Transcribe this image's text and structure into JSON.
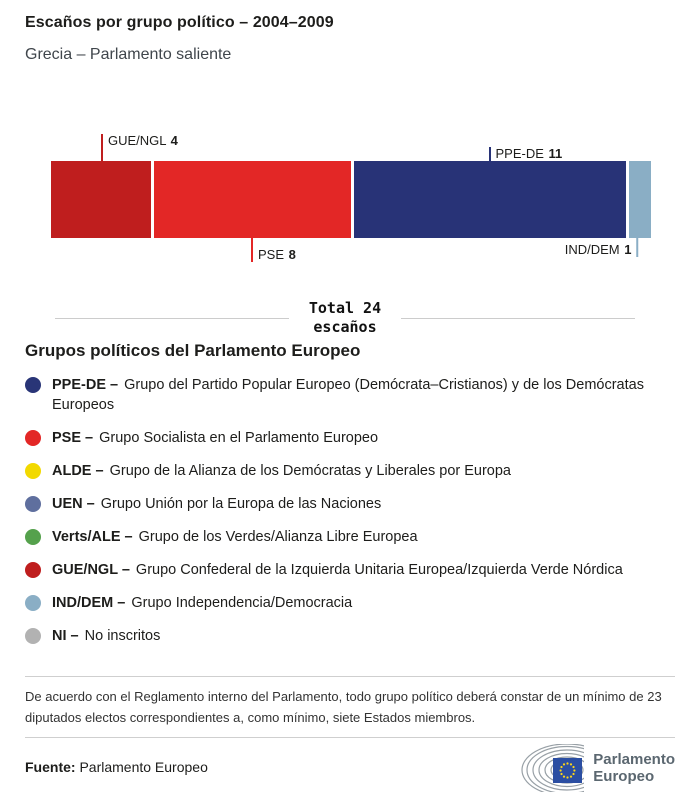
{
  "header": {
    "title": "Escaños por grupo político – 2004–2009",
    "subtitle": "Grecia – Parlamento saliente"
  },
  "chart_data": {
    "type": "bar",
    "variant": "horizontal-stacked-single-bar",
    "title": "Escaños por grupo político – 2004–2009",
    "subtitle": "Grecia – Parlamento saliente",
    "total": 24,
    "series": [
      {
        "name": "GUE/NGL",
        "value": 4,
        "color": "#bf1e1e",
        "label_position": "above"
      },
      {
        "name": "PSE",
        "value": 8,
        "color": "#e32726",
        "label_position": "below"
      },
      {
        "name": "PPE-DE",
        "value": 11,
        "color": "#283377",
        "label_position": "above"
      },
      {
        "name": "IND/DEM",
        "value": 1,
        "color": "#8aaec5",
        "label_position": "below"
      }
    ]
  },
  "total_divider": {
    "line1": "Total 24",
    "line2": "escaños"
  },
  "legend": {
    "heading": "Grupos políticos del Parlamento Europeo",
    "items": [
      {
        "abbr": "PPE-DE –",
        "desc": "Grupo del Partido Popular Europeo (Demócrata–Cristianos) y de los Demócratas Europeos",
        "color": "#293577"
      },
      {
        "abbr": "PSE –",
        "desc": "Grupo Socialista en el Parlamento Europeo",
        "color": "#e32726"
      },
      {
        "abbr": "ALDE –",
        "desc": "Grupo de la Alianza de los Demócratas y Liberales por Europa",
        "color": "#f2d900"
      },
      {
        "abbr": "UEN –",
        "desc": "Grupo Unión por la Europa de las Naciones",
        "color": "#5f6f9e"
      },
      {
        "abbr": "Verts/ALE –",
        "desc": "Grupo de los Verdes/Alianza Libre Europea",
        "color": "#55a14c"
      },
      {
        "abbr": "GUE/NGL –",
        "desc": "Grupo Confederal de la Izquierda Unitaria Europea/Izquierda Verde Nórdica",
        "color": "#bf1e1e"
      },
      {
        "abbr": "IND/DEM –",
        "desc": "Grupo Independencia/Democracia",
        "color": "#8aaec5"
      },
      {
        "abbr": "NI –",
        "desc": "No inscritos",
        "color": "#b2b2b2"
      }
    ]
  },
  "footnote": "De acuerdo con el Reglamento interno del Parlamento, todo grupo político deberá constar de un mínimo de 23 diputados electos correspondientes a, como mínimo, siete Estados miembros.",
  "source": {
    "label": "Fuente:",
    "value": "Parlamento Europeo"
  },
  "logo": {
    "line1": "Parlamento",
    "line2": "Europeo"
  }
}
